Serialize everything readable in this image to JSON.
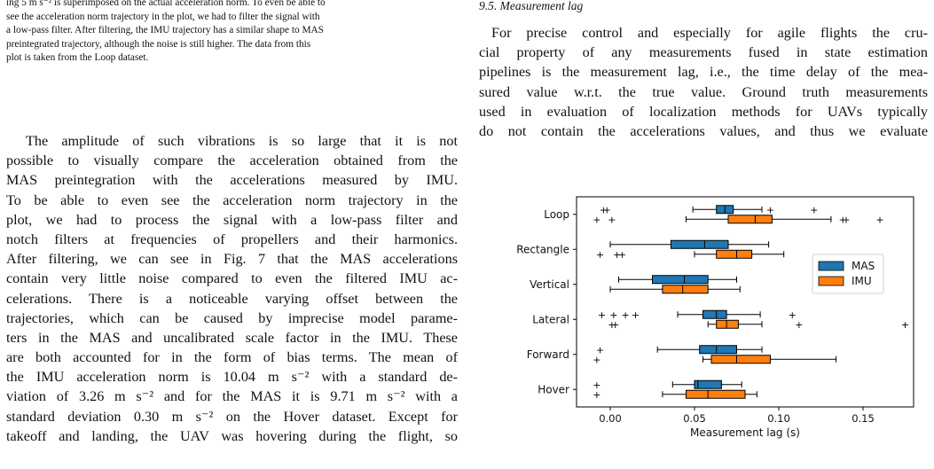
{
  "caption": {
    "lines": [
      "ing 5 m s⁻² is superimposed on the actual acceleration norm. To even be able to",
      "see the acceleration norm trajectory in the plot, we had to filter the signal with",
      "a low-pass filter. After filtering, the IMU trajectory has a similar shape to MAS",
      "preintegrated trajectory, although the noise is still higher. The data from this",
      "plot is taken from the Loop dataset."
    ]
  },
  "section_heading": "9.5. Measurement lag",
  "right_paragraph": [
    "For precise control and especially for agile flights the cru-",
    "cial property of any measurements fused in state estimation",
    "pipelines is the measurement lag, i.e., the time delay of the mea-",
    "sured value w.r.t. the true value. Ground truth measurements",
    "used in evaluation of localization methods for UAVs typically",
    "do not contain the accelerations values, and thus we evaluate"
  ],
  "left_paragraph": [
    "The amplitude of such vibrations is so large that it is not",
    "possible to visually compare the acceleration obtained from the",
    "MAS preintegration with the accelerations measured by IMU.",
    "To be able to even see the acceleration norm trajectory in the",
    "plot, we had to process the signal with a low-pass filter and",
    "notch filters at frequencies of propellers and their harmonics.",
    "After filtering, we can see in Fig. 7 that the MAS accelerations",
    "contain very little noise compared to even the filtered IMU ac-",
    "celerations. There is a noticeable varying offset between the",
    "trajectories, which can be caused by imprecise model parame-",
    "ters in the MAS and uncalibrated scale factor in the IMU. These",
    "are both accounted for in the form of bias terms. The mean of",
    "the IMU acceleration norm is 10.04 m s⁻² with a standard de-",
    "viation of 3.26 m s⁻² and for the MAS it is 9.71 m s⁻² with a",
    "standard deviation 0.30 m s⁻² on the Hover dataset. Except for",
    "takeoff and landing, the UAV was hovering during the flight, so"
  ],
  "chart_data": {
    "type": "boxplot",
    "orientation": "horizontal",
    "xlabel": "Measurement lag (s)",
    "ylabel": "",
    "xlim": [
      -0.02,
      0.18
    ],
    "xticks": [
      0.0,
      0.05,
      0.1,
      0.15
    ],
    "xtick_labels": [
      "0.00",
      "0.05",
      "0.10",
      "0.15"
    ],
    "categories": [
      "Loop",
      "Rectangle",
      "Vertical",
      "Lateral",
      "Forward",
      "Hover"
    ],
    "legend_position": "center-right",
    "series": [
      {
        "name": "MAS",
        "color": "#1f77b4",
        "boxes": [
          {
            "whislo": 0.049,
            "q1": 0.063,
            "med": 0.068,
            "q3": 0.073,
            "whishi": 0.09,
            "fliers": [
              -0.004,
              -0.002,
              0.095,
              0.121
            ]
          },
          {
            "whislo": 0.0,
            "q1": 0.036,
            "med": 0.056,
            "q3": 0.07,
            "whishi": 0.094,
            "fliers": []
          },
          {
            "whislo": 0.005,
            "q1": 0.025,
            "med": 0.044,
            "q3": 0.058,
            "whishi": 0.075,
            "fliers": []
          },
          {
            "whislo": 0.04,
            "q1": 0.055,
            "med": 0.063,
            "q3": 0.069,
            "whishi": 0.089,
            "fliers": -0.005,
            "fliers_list": [
              -0.005,
              0.002,
              0.009,
              0.015,
              0.108
            ]
          },
          {
            "whislo": 0.028,
            "q1": 0.053,
            "med": 0.063,
            "q3": 0.075,
            "whishi": 0.09,
            "fliers": [
              -0.006
            ]
          },
          {
            "whislo": 0.037,
            "q1": 0.05,
            "med": 0.052,
            "q3": 0.066,
            "whishi": 0.078,
            "fliers": [
              -0.008
            ]
          }
        ]
      },
      {
        "name": "IMU",
        "color": "#ff7f0e",
        "boxes": [
          {
            "whislo": 0.045,
            "q1": 0.07,
            "med": 0.086,
            "q3": 0.096,
            "whishi": 0.131,
            "fliers": [
              -0.008,
              0.001,
              0.138,
              0.14,
              0.16
            ]
          },
          {
            "whislo": 0.05,
            "q1": 0.063,
            "med": 0.075,
            "q3": 0.084,
            "whishi": 0.103,
            "fliers": [
              -0.006,
              0.004,
              0.007
            ]
          },
          {
            "whislo": 0.0,
            "q1": 0.031,
            "med": 0.043,
            "q3": 0.058,
            "whishi": 0.077,
            "fliers": []
          },
          {
            "whislo": 0.058,
            "q1": 0.063,
            "med": 0.069,
            "q3": 0.076,
            "whishi": 0.09,
            "fliers": [
              0.001,
              0.003,
              0.112,
              0.175
            ]
          },
          {
            "whislo": 0.055,
            "q1": 0.06,
            "med": 0.075,
            "q3": 0.095,
            "whishi": 0.134,
            "fliers": [
              -0.008
            ]
          },
          {
            "whislo": 0.031,
            "q1": 0.045,
            "med": 0.058,
            "q3": 0.08,
            "whishi": 0.087,
            "fliers": [
              -0.008
            ]
          }
        ]
      }
    ]
  }
}
